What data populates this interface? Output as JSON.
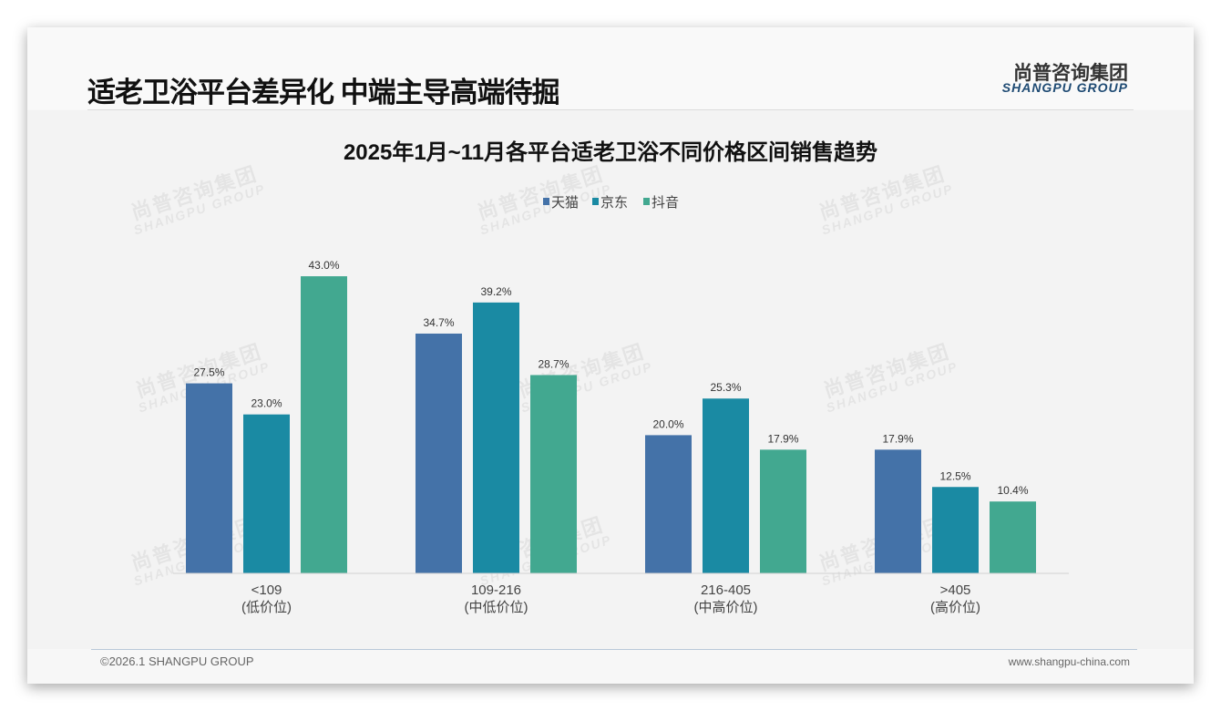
{
  "header": {
    "title": "适老卫浴平台差异化 中端主导高端待掘",
    "logo_cn": "尚普咨询集团",
    "logo_en": "SHANGPU GROUP"
  },
  "watermark": {
    "cn": "尚普咨询集团",
    "en": "SHANGPU GROUP"
  },
  "footer": {
    "copyright": "©2026.1 SHANGPU GROUP",
    "website": "www.shangpu-china.com"
  },
  "colors": {
    "tmall": "#4472a8",
    "jd": "#1a8aa3",
    "douyin": "#42a890"
  },
  "chart_data": {
    "type": "bar",
    "title": "2025年1月~11月各平台适老卫浴不同价格区间销售趋势",
    "categories": [
      "<109",
      "109-216",
      "216-405",
      ">405"
    ],
    "category_sublabels": [
      "(低价位)",
      "(中低价位)",
      "(中高价位)",
      "(高价位)"
    ],
    "series": [
      {
        "name": "天猫",
        "values": [
          27.5,
          34.7,
          20.0,
          17.9
        ],
        "labels": [
          "27.5%",
          "34.7%",
          "20.0%",
          "17.9%"
        ]
      },
      {
        "name": "京东",
        "values": [
          23.0,
          39.2,
          25.3,
          12.5
        ],
        "labels": [
          "23.0%",
          "39.2%",
          "25.3%",
          "12.5%"
        ]
      },
      {
        "name": "抖音",
        "values": [
          43.0,
          28.7,
          17.9,
          10.4
        ],
        "labels": [
          "43.0%",
          "28.7%",
          "17.9%",
          "10.4%"
        ]
      }
    ],
    "unit": "%",
    "legend_position": "top-center",
    "grid": false,
    "xlabel": "",
    "ylabel": ""
  }
}
